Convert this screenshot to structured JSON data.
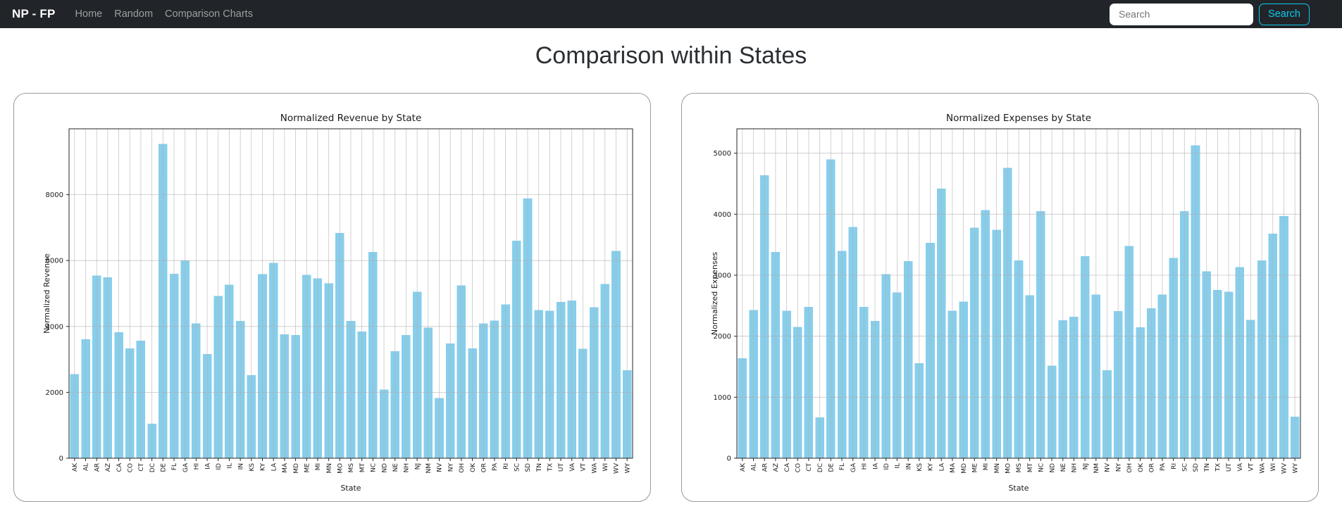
{
  "navbar": {
    "brand": "NP - FP",
    "links": [
      "Home",
      "Random",
      "Comparison Charts"
    ],
    "search_placeholder": "Search",
    "search_button": "Search",
    "colors": {
      "bg": "#212529",
      "link": "#8c9196",
      "brand": "#ffffff",
      "accent": "#0dcaf0"
    }
  },
  "page": {
    "title": "Comparison within States"
  },
  "chart_data": [
    {
      "type": "bar",
      "title": "Normalized Revenue by State",
      "xlabel": "State",
      "ylabel": "Normalized Revenue",
      "ylim": [
        0,
        10000
      ],
      "yticks": [
        0,
        2000,
        4000,
        6000,
        8000
      ],
      "grid": true,
      "legend": "none",
      "bar_color": "#87ceeb",
      "grid_color": "#b0b0b0",
      "categories": [
        "AK",
        "AL",
        "AR",
        "AZ",
        "CA",
        "CO",
        "CT",
        "DC",
        "DE",
        "FL",
        "GA",
        "HI",
        "IA",
        "ID",
        "IL",
        "IN",
        "KS",
        "KY",
        "LA",
        "MA",
        "MD",
        "ME",
        "MI",
        "MN",
        "MO",
        "MS",
        "MT",
        "NC",
        "ND",
        "NE",
        "NH",
        "NJ",
        "NM",
        "NV",
        "NY",
        "OH",
        "OK",
        "OR",
        "PA",
        "RI",
        "SC",
        "SD",
        "TN",
        "TX",
        "UT",
        "VA",
        "VT",
        "WA",
        "WI",
        "WV",
        "WY"
      ],
      "values": [
        2550,
        3610,
        5550,
        5490,
        3830,
        3330,
        3570,
        1050,
        9540,
        5600,
        6000,
        4090,
        3160,
        4920,
        5270,
        4170,
        2520,
        5590,
        5930,
        3760,
        3740,
        5570,
        5460,
        5310,
        6840,
        4170,
        3850,
        6260,
        2085,
        3250,
        3740,
        5055,
        3960,
        1830,
        3480,
        5250,
        3330,
        4090,
        4180,
        4670,
        6600,
        7890,
        4500,
        4480,
        4740,
        4790,
        3320,
        4580,
        5290,
        6290,
        2670
      ]
    },
    {
      "type": "bar",
      "title": "Normalized Expenses by State",
      "xlabel": "State",
      "ylabel": "Normalized Expenses",
      "ylim": [
        0,
        5400
      ],
      "yticks": [
        0,
        1000,
        2000,
        3000,
        4000,
        5000
      ],
      "grid": true,
      "legend": "none",
      "bar_color": "#87ceeb",
      "grid_color": "#b0b0b0",
      "categories": [
        "AK",
        "AL",
        "AR",
        "AZ",
        "CA",
        "CO",
        "CT",
        "DC",
        "DE",
        "FL",
        "GA",
        "HI",
        "IA",
        "ID",
        "IL",
        "IN",
        "KS",
        "KY",
        "LA",
        "MA",
        "MD",
        "ME",
        "MI",
        "MN",
        "MO",
        "MS",
        "MT",
        "NC",
        "ND",
        "NE",
        "NH",
        "NJ",
        "NM",
        "NV",
        "NY",
        "OH",
        "OK",
        "OR",
        "PA",
        "RI",
        "SC",
        "SD",
        "TN",
        "TX",
        "UT",
        "VA",
        "VT",
        "WA",
        "WI",
        "WV",
        "WY"
      ],
      "values": [
        1640,
        2430,
        4640,
        3380,
        2420,
        2150,
        2480,
        670,
        4900,
        3400,
        3790,
        2480,
        2250,
        3020,
        2720,
        3230,
        1555,
        3530,
        4420,
        2420,
        2570,
        3780,
        4070,
        3745,
        4760,
        3240,
        2670,
        4050,
        1520,
        2260,
        2320,
        3310,
        2685,
        1440,
        2410,
        3480,
        2145,
        2455,
        2685,
        3285,
        4050,
        5130,
        3065,
        2760,
        2730,
        3130,
        2270,
        3240,
        3680,
        3970,
        680
      ]
    }
  ]
}
